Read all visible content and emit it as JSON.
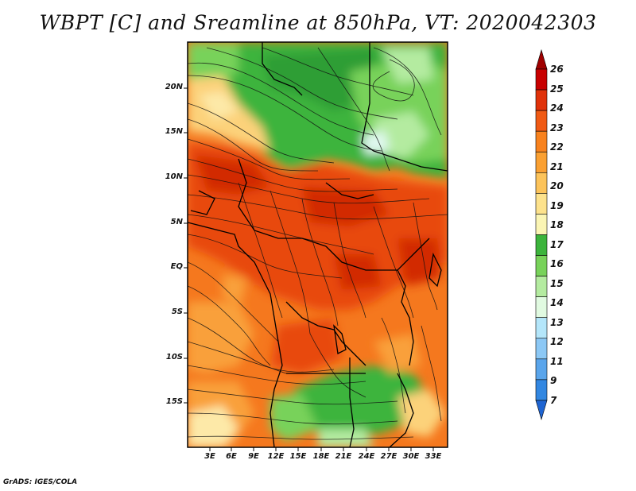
{
  "title": "WBPT [C] and Sreamline at 850hPa, VT: 2020042303",
  "footer": "GrADS: IGES/COLA",
  "lat_labels": [
    "20N",
    "15N",
    "10N",
    "5N",
    "EQ",
    "5S",
    "10S",
    "15S"
  ],
  "lon_labels": [
    "3E",
    "6E",
    "9E",
    "12E",
    "15E",
    "18E",
    "21E",
    "24E",
    "27E",
    "30E",
    "33E"
  ],
  "colorbar": {
    "labels": [
      "26",
      "25",
      "24",
      "23",
      "22",
      "21",
      "20",
      "19",
      "18",
      "17",
      "16",
      "15",
      "14",
      "13",
      "12",
      "11",
      "9",
      "7"
    ],
    "colors": [
      "#a00000",
      "#c80000",
      "#e0320a",
      "#f05a14",
      "#f8821e",
      "#faa032",
      "#fcc35a",
      "#fde28c",
      "#fbf5b4",
      "#3cb43c",
      "#78d25a",
      "#b4eba0",
      "#e1fae1",
      "#b4e6fa",
      "#8cc8f5",
      "#5aa5eb",
      "#3287e1",
      "#1e64d2"
    ]
  },
  "map": {
    "panel": "WBPT shading with 850hPa streamlines over Central Africa",
    "colors": {
      "red_dark": "#d22a00",
      "red": "#e84a10",
      "orange": "#f5781e",
      "orange_light": "#f9a03a",
      "yellow": "#fcd27a",
      "cream": "#fde9a8",
      "green": "#3cb43c",
      "green_light": "#7cd35e",
      "green_pale": "#b9ea9e",
      "cyan_pale": "#dff8ee"
    }
  }
}
